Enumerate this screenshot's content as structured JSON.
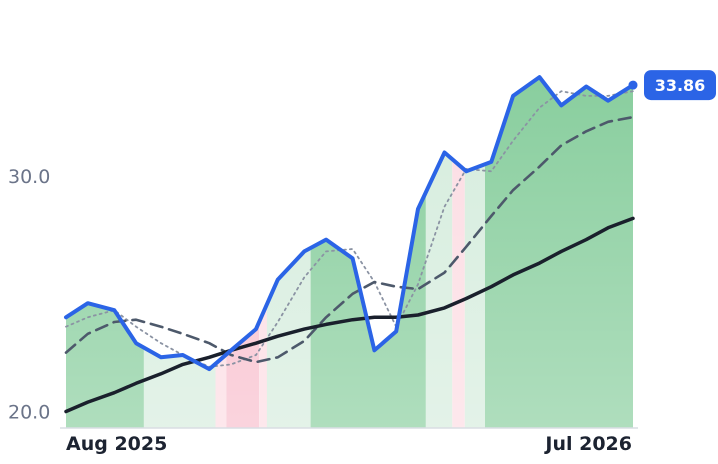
{
  "chart_data": {
    "type": "line",
    "title": "",
    "xlabel": "",
    "ylabel": "",
    "ylim": [
      19.3,
      36.2
    ],
    "grid": false,
    "legend": "none",
    "x_tick_labels": [
      "Aug 2025",
      "Jul 2026"
    ],
    "x_range": [
      "2025-08-01",
      "2026-07-31"
    ],
    "y_ticks": [
      {
        "value": 20,
        "label": "20.0"
      },
      {
        "value": 30,
        "label": "30.0"
      }
    ],
    "last_value": 33.86,
    "last_value_label": "33.86",
    "x": [
      "2025-08-01",
      "2025-08-15",
      "2025-09-01",
      "2025-09-15",
      "2025-10-01",
      "2025-10-15",
      "2025-11-01",
      "2025-11-15",
      "2025-12-01",
      "2025-12-15",
      "2026-01-01",
      "2026-01-15",
      "2026-02-01",
      "2026-02-15",
      "2026-03-01",
      "2026-03-15",
      "2026-04-01",
      "2026-04-15",
      "2026-05-01",
      "2026-05-15",
      "2026-06-01",
      "2026-06-15",
      "2026-07-01",
      "2026-07-15",
      "2026-07-31"
    ],
    "series": [
      {
        "values": [
          24.0,
          24.6,
          24.3,
          22.9,
          22.3,
          22.4,
          21.8,
          22.6,
          23.5,
          25.6,
          26.8,
          27.3,
          26.5,
          22.6,
          23.4,
          28.6,
          31.0,
          30.2,
          30.6,
          33.4,
          34.2,
          33.0,
          33.8,
          33.2,
          33.86
        ],
        "color": "#2b64e6"
      },
      {
        "values": [
          23.6,
          24.0,
          24.3,
          23.6,
          22.9,
          22.4,
          21.9,
          22.0,
          22.4,
          23.8,
          25.7,
          26.8,
          26.9,
          25.5,
          23.6,
          25.4,
          28.7,
          30.3,
          30.2,
          31.5,
          32.9,
          33.6,
          33.4,
          33.4,
          33.6
        ],
        "color": "#8b93a3",
        "style": "dotted"
      },
      {
        "values": [
          22.5,
          23.3,
          23.8,
          23.9,
          23.6,
          23.3,
          22.9,
          22.4,
          22.1,
          22.3,
          23.0,
          24.0,
          25.0,
          25.5,
          25.3,
          25.2,
          25.9,
          27.0,
          28.3,
          29.4,
          30.4,
          31.3,
          31.9,
          32.3,
          32.5
        ],
        "color": "#4d596b",
        "style": "dashed"
      },
      {
        "values": [
          20.0,
          20.4,
          20.8,
          21.2,
          21.6,
          22.0,
          22.3,
          22.6,
          22.9,
          23.2,
          23.5,
          23.7,
          23.9,
          24.0,
          24.0,
          24.1,
          24.4,
          24.8,
          25.3,
          25.8,
          26.3,
          26.8,
          27.3,
          27.8,
          28.2
        ],
        "color": "#1a202c"
      }
    ],
    "background_regions": [
      {
        "from": "2025-08-01",
        "to": "2025-09-20",
        "color": "#84cc9a"
      },
      {
        "from": "2025-09-20",
        "to": "2025-11-05",
        "color": "#d4ecdc"
      },
      {
        "from": "2025-11-05",
        "to": "2025-11-12",
        "color": "#fcdbe2"
      },
      {
        "from": "2025-11-12",
        "to": "2025-12-03",
        "color": "#f8bccb"
      },
      {
        "from": "2025-12-03",
        "to": "2025-12-08",
        "color": "#fcdbe2"
      },
      {
        "from": "2025-12-08",
        "to": "2026-01-05",
        "color": "#d4ecdc"
      },
      {
        "from": "2026-01-05",
        "to": "2026-03-20",
        "color": "#84cc9a"
      },
      {
        "from": "2026-03-20",
        "to": "2026-04-06",
        "color": "#d4ecdc"
      },
      {
        "from": "2026-04-06",
        "to": "2026-04-14",
        "color": "#fcdbe2"
      },
      {
        "from": "2026-04-14",
        "to": "2026-04-27",
        "color": "#d4ecdc"
      },
      {
        "from": "2026-04-27",
        "to": "2026-07-31",
        "color": "#84cc9a"
      }
    ],
    "badge_color": "#2b64e6"
  }
}
